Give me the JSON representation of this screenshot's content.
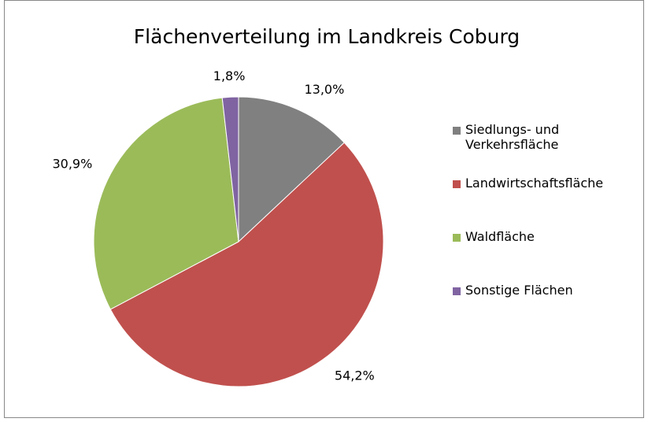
{
  "chart_data": {
    "type": "pie",
    "title": "Flächenverteilung im  Landkreis Coburg",
    "categories": [
      "Siedlungs- und Verkehrsfläche",
      "Landwirtschaftsfläche",
      "Waldfläche",
      "Sonstige Flächen"
    ],
    "values": [
      13.0,
      54.2,
      30.9,
      1.8
    ],
    "value_labels": [
      "13,0%",
      "54,2%",
      "30,9%",
      "1,8%"
    ],
    "colors": [
      "#808080",
      "#c0504d",
      "#9bbb59",
      "#8064a2"
    ],
    "legend": "right"
  }
}
